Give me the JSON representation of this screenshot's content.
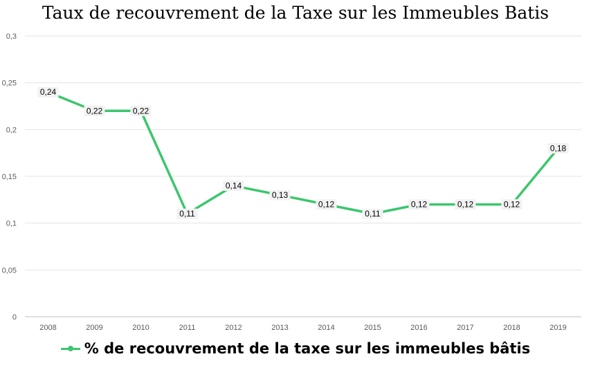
{
  "chart_data": {
    "type": "line",
    "title": "Taux de recouvrement de la Taxe sur les Immeubles Batis",
    "categories": [
      "2008",
      "2009",
      "2010",
      "2011",
      "2012",
      "2013",
      "2014",
      "2015",
      "2016",
      "2017",
      "2018",
      "2019"
    ],
    "series": [
      {
        "name": "% de recouvrement de la taxe sur les immeubles bâtis",
        "values": [
          0.24,
          0.22,
          0.22,
          0.11,
          0.14,
          0.13,
          0.12,
          0.11,
          0.12,
          0.12,
          0.12,
          0.18
        ],
        "labels": [
          "0,24",
          "0,22",
          "0,22",
          "0,11",
          "0,14",
          "0,13",
          "0,12",
          "0,11",
          "0,12",
          "0,12",
          "0,12",
          "0,18"
        ],
        "color": "#3cc66d"
      }
    ],
    "yticks": [
      0,
      0.05,
      0.1,
      0.15,
      0.2,
      0.25,
      0.3
    ],
    "ytick_labels": [
      "0",
      "0,05",
      "0,1",
      "0,15",
      "0,2",
      "0,25",
      "0,3"
    ],
    "ylim": [
      0,
      0.3
    ],
    "grid": true,
    "legend_position": "bottom"
  }
}
